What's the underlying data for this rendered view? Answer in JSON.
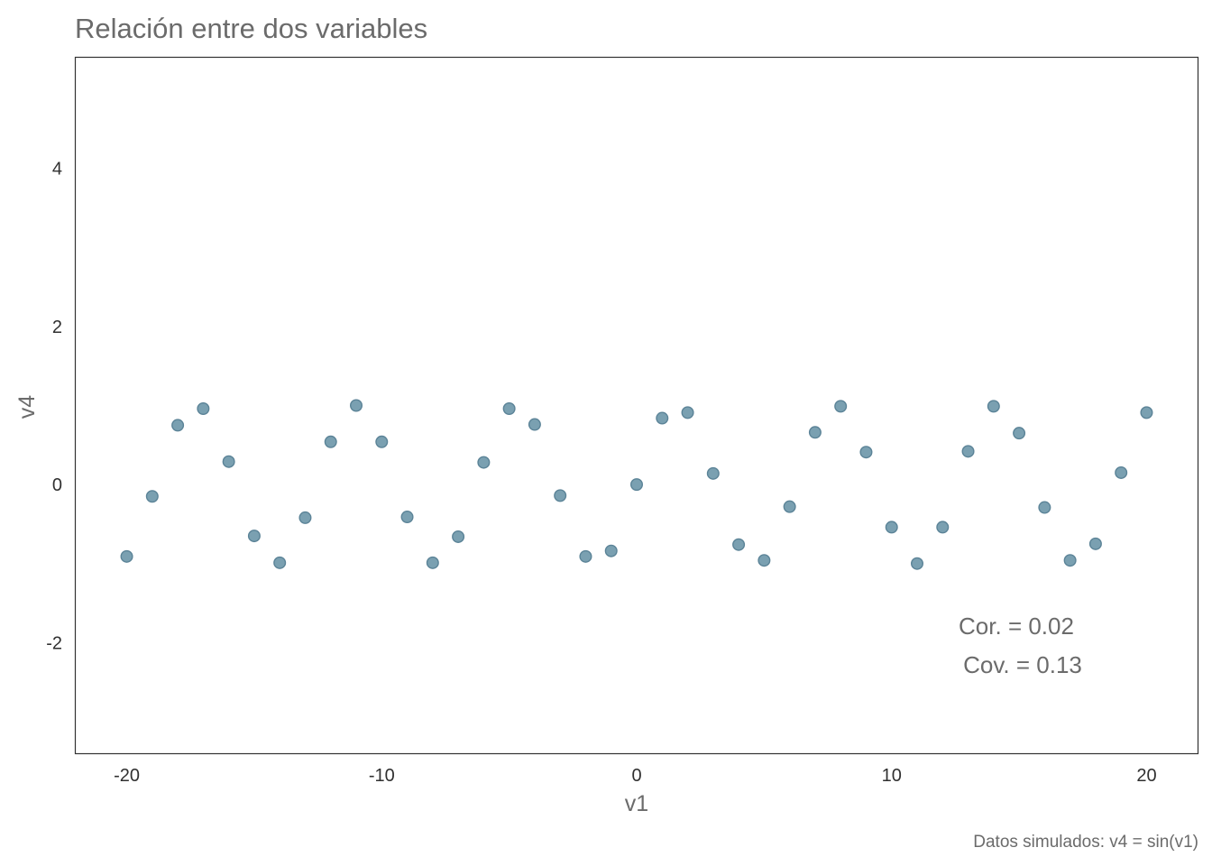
{
  "chart_data": {
    "type": "scatter",
    "title": "Relación entre dos variables",
    "xlabel": "v1",
    "ylabel": "v4",
    "caption": "Datos simulados:  v4 = sin(v1)",
    "xlim": [
      -22,
      22
    ],
    "ylim": [
      -3.4,
      5.4
    ],
    "xticks": [
      -20,
      -10,
      0,
      10,
      20
    ],
    "xtick_labels": [
      "-20",
      "-10",
      "0",
      "10",
      "20"
    ],
    "yticks": [
      -2,
      0,
      2,
      4
    ],
    "ytick_labels": [
      "-2",
      "0",
      "2",
      "4"
    ],
    "grid": false,
    "point_color": "#7aa0b1",
    "point_stroke": "#5b8397",
    "annotations": {
      "cor": "Cor. =  0.02",
      "cov": "Cov. =  0.13"
    },
    "points": [
      {
        "x": -20,
        "y": -0.91
      },
      {
        "x": -19,
        "y": -0.15
      },
      {
        "x": -18,
        "y": 0.75
      },
      {
        "x": -17,
        "y": 0.96
      },
      {
        "x": -16,
        "y": 0.29
      },
      {
        "x": -15,
        "y": -0.65
      },
      {
        "x": -14,
        "y": -0.99
      },
      {
        "x": -13,
        "y": -0.42
      },
      {
        "x": -12,
        "y": 0.54
      },
      {
        "x": -11,
        "y": 1.0
      },
      {
        "x": -10,
        "y": 0.54
      },
      {
        "x": -9,
        "y": -0.41
      },
      {
        "x": -8,
        "y": -0.99
      },
      {
        "x": -7,
        "y": -0.66
      },
      {
        "x": -6,
        "y": 0.28
      },
      {
        "x": -5,
        "y": 0.96
      },
      {
        "x": -4,
        "y": 0.76
      },
      {
        "x": -3,
        "y": -0.14
      },
      {
        "x": -2,
        "y": -0.91
      },
      {
        "x": -1,
        "y": -0.84
      },
      {
        "x": 0,
        "y": 0.0
      },
      {
        "x": 1,
        "y": 0.84
      },
      {
        "x": 2,
        "y": 0.91
      },
      {
        "x": 3,
        "y": 0.14
      },
      {
        "x": 4,
        "y": -0.76
      },
      {
        "x": 5,
        "y": -0.96
      },
      {
        "x": 6,
        "y": -0.28
      },
      {
        "x": 7,
        "y": 0.66
      },
      {
        "x": 8,
        "y": 0.99
      },
      {
        "x": 9,
        "y": 0.41
      },
      {
        "x": 10,
        "y": -0.54
      },
      {
        "x": 11,
        "y": -1.0
      },
      {
        "x": 12,
        "y": -0.54
      },
      {
        "x": 13,
        "y": 0.42
      },
      {
        "x": 14,
        "y": 0.99
      },
      {
        "x": 15,
        "y": 0.65
      },
      {
        "x": 16,
        "y": -0.29
      },
      {
        "x": 17,
        "y": -0.96
      },
      {
        "x": 18,
        "y": -0.75
      },
      {
        "x": 19,
        "y": 0.15
      },
      {
        "x": 20,
        "y": 0.91
      }
    ]
  }
}
